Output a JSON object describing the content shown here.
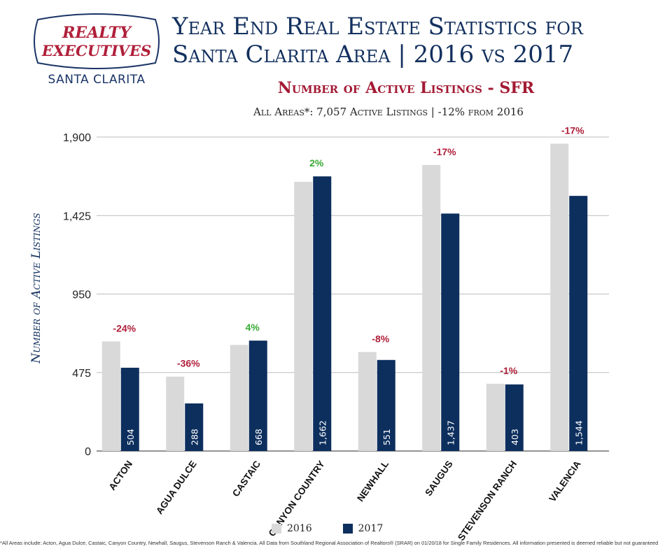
{
  "header": {
    "logo_line1": "REALTY",
    "logo_line2": "EXECUTIVES",
    "logo_sub": "SANTA CLARITA",
    "title_line1": "Year End Real Estate Statistics for",
    "title_line2": "Santa Clarita Area | 2016 vs 2017",
    "subtitle": "Number of Active Listings - SFR",
    "summary": "All Areas*:  7,057 Active Listings | -12% from 2016"
  },
  "colors": {
    "series_2016": "#d9d9d9",
    "series_2017": "#0d2f5e",
    "negative": "#b01f3a",
    "positive": "#3aaa35",
    "title": "#12305e"
  },
  "chart_data": {
    "type": "bar",
    "title": "Number of Active Listings - SFR",
    "ylabel": "Number of Active Listings",
    "xlabel": "",
    "ylim": [
      0,
      1900
    ],
    "yticks": [
      0,
      475,
      950,
      1425,
      1900
    ],
    "ytick_labels": [
      "0",
      "475",
      "950",
      "1,425",
      "1,900"
    ],
    "categories": [
      "ACTON",
      "AGUA DULCE",
      "CASTAIC",
      "CANYON COUNTRY",
      "NEWHALL",
      "SAUGUS",
      "STEVENSON RANCH",
      "VALENCIA"
    ],
    "series": [
      {
        "name": "2016",
        "values": [
          663,
          450,
          642,
          1629,
          599,
          1731,
          407,
          1860
        ]
      },
      {
        "name": "2017",
        "values": [
          504,
          288,
          668,
          1662,
          551,
          1437,
          403,
          1544
        ]
      }
    ],
    "data_labels_2017": [
      "504",
      "288",
      "668",
      "1,662",
      "551",
      "1,437",
      "403",
      "1,544"
    ],
    "pct_change": [
      "-24%",
      "-36%",
      "4%",
      "2%",
      "-8%",
      "-17%",
      "-1%",
      "-17%"
    ],
    "grid": true,
    "legend": "bottom-center"
  },
  "legend": {
    "label_2016": "2016",
    "label_2017": "2017"
  },
  "footnote": "*All Areas include: Acton, Agua Dulce, Castaic, Canyon Country, Newhall, Saugus, Stevenson Ranch & Valencia. All Data from Southland Regional Association of Realtors® (SRAR) on 01/20/18 for Single Family Residences. All information presented is deemed reliable but not guaranteed."
}
